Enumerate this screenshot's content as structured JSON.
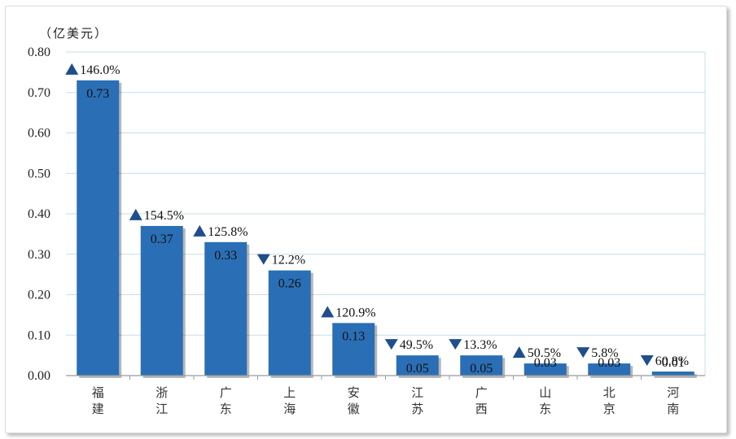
{
  "chart_data": {
    "type": "bar",
    "unit_label": "（亿美元）",
    "categories": [
      "福建",
      "浙江",
      "广东",
      "上海",
      "安徽",
      "江苏",
      "广西",
      "山东",
      "北京",
      "河南"
    ],
    "values": [
      0.73,
      0.37,
      0.33,
      0.26,
      0.13,
      0.05,
      0.05,
      0.03,
      0.03,
      0.01
    ],
    "value_labels": [
      "0.73",
      "0.37",
      "0.33",
      "0.26",
      "0.13",
      "0.05",
      "0.05",
      "0.03",
      "0.03",
      "0.01"
    ],
    "changes": [
      {
        "dir": "up",
        "text": "146.0%"
      },
      {
        "dir": "up",
        "text": "154.5%"
      },
      {
        "dir": "up",
        "text": "125.8%"
      },
      {
        "dir": "down",
        "text": "12.2%"
      },
      {
        "dir": "up",
        "text": "120.9%"
      },
      {
        "dir": "down",
        "text": "49.5%"
      },
      {
        "dir": "down",
        "text": "13.3%"
      },
      {
        "dir": "up",
        "text": "50.5%"
      },
      {
        "dir": "down",
        "text": "5.8%"
      },
      {
        "dir": "down",
        "text": "60.8%"
      }
    ],
    "ylim": [
      0,
      0.8
    ],
    "yticks": [
      "0.00",
      "0.10",
      "0.20",
      "0.30",
      "0.40",
      "0.50",
      "0.60",
      "0.70",
      "0.80"
    ],
    "grid": true,
    "colors": {
      "bar": "#2a6fb5",
      "grid": "#c9dce9",
      "marker": "#1f4e8c",
      "axis": "#9a9a9a"
    }
  }
}
